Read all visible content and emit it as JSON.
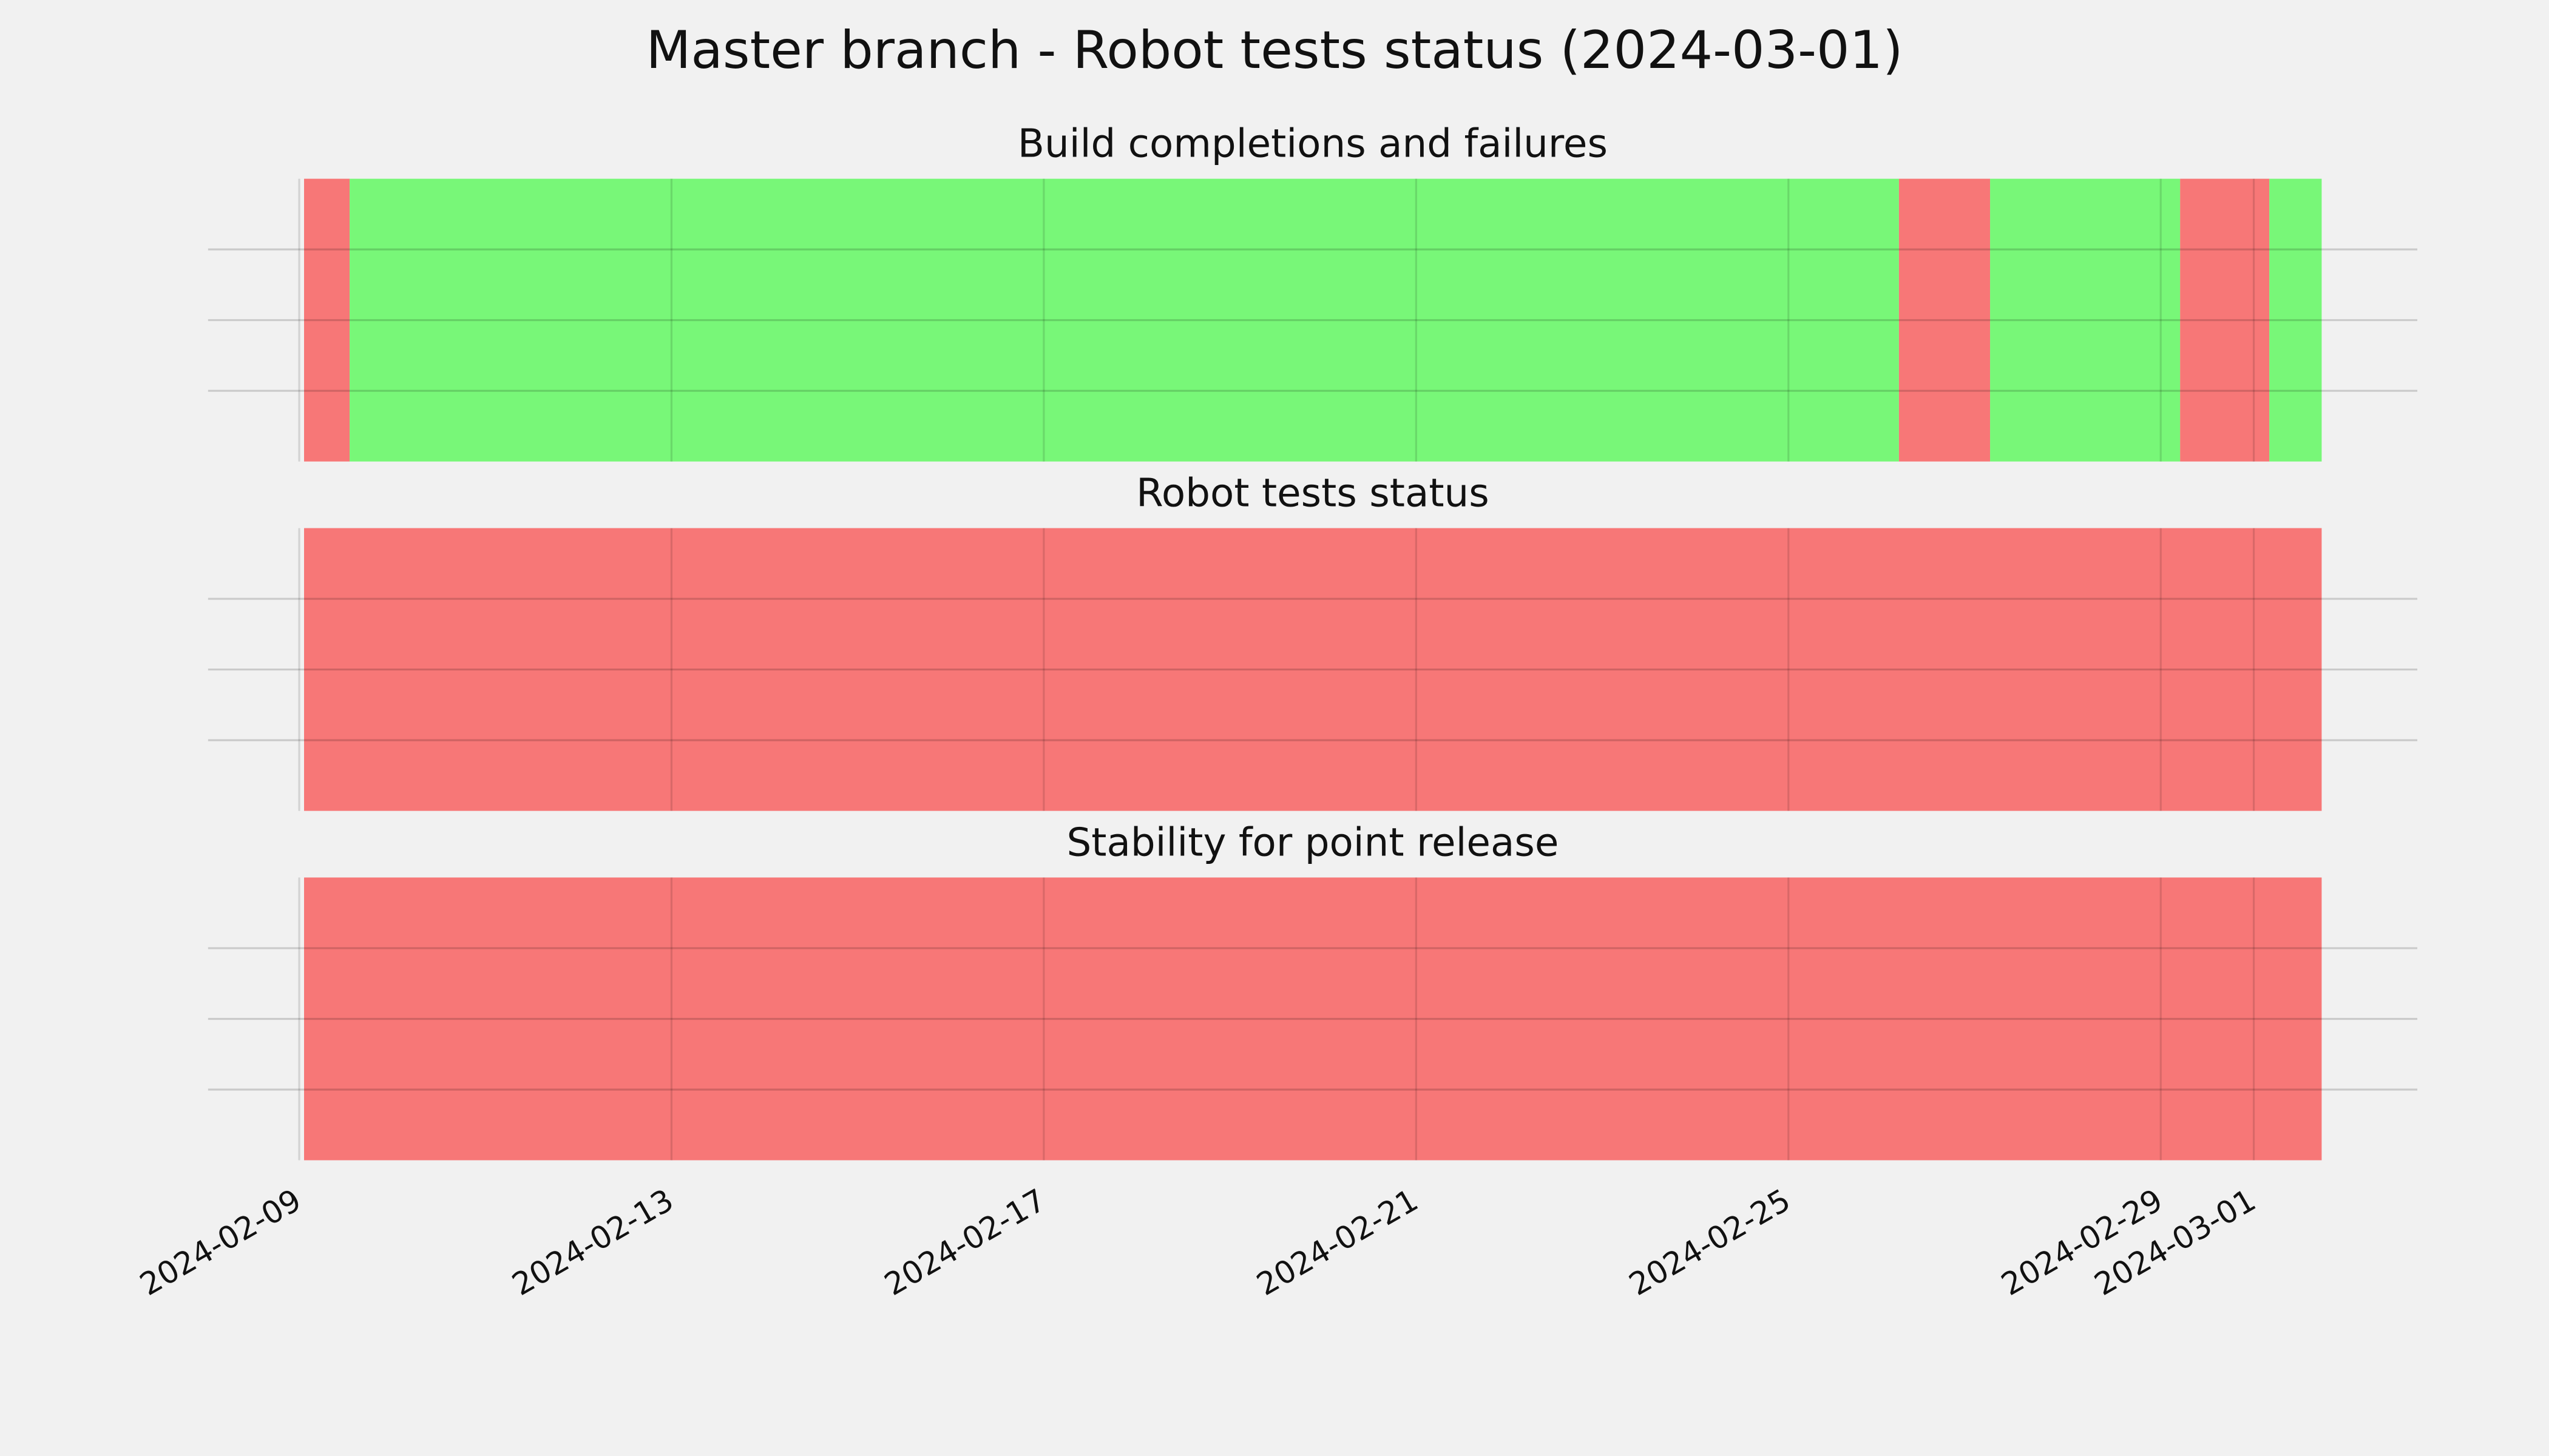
{
  "title": "Master branch - Robot tests status (2024-03-01)",
  "chart_data": [
    {
      "type": "timeline",
      "title": "Build completions and failures",
      "x": [
        "2024-02-09T01:15",
        "2024-02-09T13:00",
        "2024-02-26T04:30",
        "2024-02-27T04:00",
        "2024-02-29T05:00",
        "2024-03-01T04:00",
        "2024-03-01T17:30"
      ],
      "colors": [
        "#f77777",
        "#78f778",
        "#f77777",
        "#78f778",
        "#f77777",
        "#78f778"
      ],
      "xlim": [
        "2024-02-08T00:30",
        "2024-03-02T18:10"
      ],
      "xticks": [
        "2024-02-09",
        "2024-02-13",
        "2024-02-17",
        "2024-02-21",
        "2024-02-25",
        "2024-02-29",
        "2024-03-01"
      ],
      "grid": true
    },
    {
      "type": "timeline",
      "title": "Robot tests status",
      "x": [
        "2024-02-09T01:15",
        "2024-03-01T17:30"
      ],
      "colors": [
        "#f77777"
      ],
      "xlim": [
        "2024-02-08T00:30",
        "2024-03-02T18:10"
      ],
      "xticks": [
        "2024-02-09",
        "2024-02-13",
        "2024-02-17",
        "2024-02-21",
        "2024-02-25",
        "2024-02-29",
        "2024-03-01"
      ],
      "grid": true
    },
    {
      "type": "timeline",
      "title": "Stability for point release",
      "x": [
        "2024-02-09T01:15",
        "2024-03-01T17:30"
      ],
      "colors": [
        "#f77777"
      ],
      "xlim": [
        "2024-02-08T00:30",
        "2024-03-02T18:10"
      ],
      "xticks": [
        "2024-02-09",
        "2024-02-13",
        "2024-02-17",
        "2024-02-21",
        "2024-02-25",
        "2024-02-29",
        "2024-03-01"
      ],
      "grid": true
    }
  ]
}
